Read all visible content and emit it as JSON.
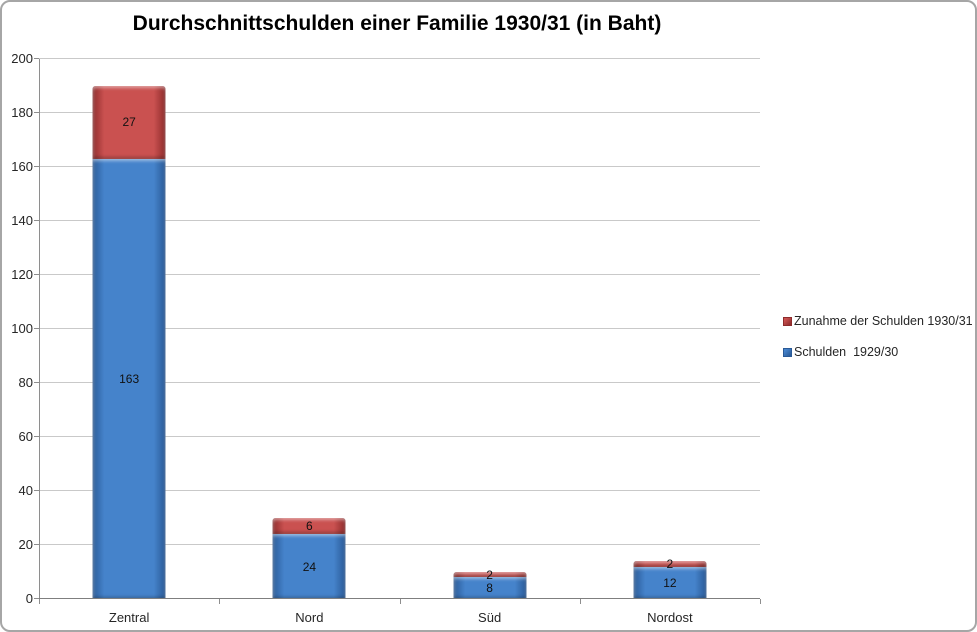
{
  "title": "Durchschnittschulden einer Familie 1930/31 (in Baht)",
  "chart_data": {
    "type": "bar",
    "stacked": true,
    "title": "Durchschnittschulden einer Familie 1930/31 (in Baht)",
    "categories": [
      "Zentral",
      "Nord",
      "Süd",
      "Nordost"
    ],
    "series": [
      {
        "name": "Schulden  1929/30",
        "color": "#4F81BD",
        "face": "#4583CB",
        "edge": "#2A5A97",
        "values": [
          163,
          24,
          8,
          12
        ]
      },
      {
        "name": "Zunahme der Schulden 1930/31",
        "color": "#C0504D",
        "face": "#CA5150",
        "edge": "#8E2C2C",
        "values": [
          27,
          6,
          2,
          2
        ]
      }
    ],
    "data_labels": true,
    "xlabel": "",
    "ylabel": "",
    "ylim": [
      0,
      200
    ],
    "ytick_step": 20,
    "grid": "horizontal",
    "legend_position": "right"
  },
  "legend": {
    "items": [
      {
        "label": "Zunahme der Schulden 1930/31",
        "series": 1
      },
      {
        "label": "Schulden  1929/30",
        "series": 0
      }
    ]
  }
}
